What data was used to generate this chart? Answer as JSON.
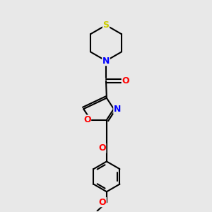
{
  "background_color": "#e8e8e8",
  "bond_color": "#000000",
  "bond_width": 1.5,
  "atom_colors": {
    "S": "#cccc00",
    "N": "#0000ff",
    "O": "#ff0000",
    "C": "#000000"
  },
  "figsize": [
    3.0,
    3.0
  ],
  "dpi": 100
}
